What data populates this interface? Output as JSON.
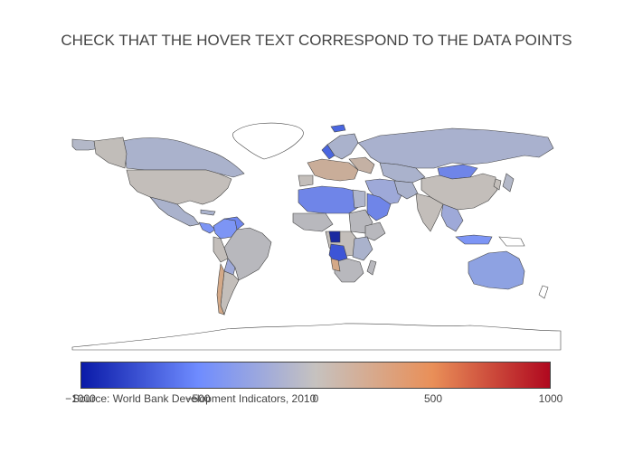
{
  "title": "CHECK THAT THE HOVER TEXT CORRESPOND TO THE DATA POINTS",
  "source": "Source: World Bank Development Indicators, 2010",
  "colorscale": {
    "name": "diverging-blue-gray-red",
    "stops": [
      "#0a1aa8",
      "#6f8cff",
      "#c6c2bf",
      "#e98f58",
      "#b0081f"
    ]
  },
  "colorbar": {
    "range": [
      -1000,
      1000
    ],
    "ticks": [
      "−1000",
      "−500",
      "0",
      "500",
      "1000"
    ],
    "tick_values": [
      -1000,
      -500,
      0,
      500,
      1000
    ]
  },
  "map": {
    "projection": "equirectangular",
    "land_fill": "#ffffff",
    "border_color": "#444444"
  },
  "chart_data": {
    "type": "choropleth",
    "title": "CHECK THAT THE HOVER TEXT CORRESPOND TO THE DATA POINTS",
    "zrange": [
      -1000,
      1000
    ]
  }
}
